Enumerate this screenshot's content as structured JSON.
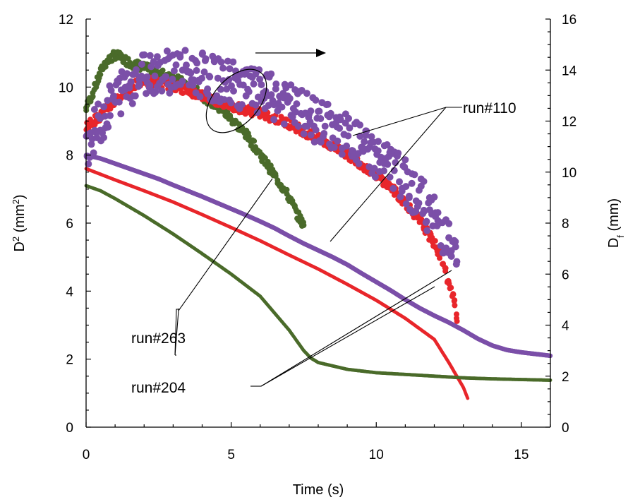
{
  "chart_data": {
    "type": "scatter",
    "xlabel": "Time (s)",
    "ylabel": "D² (mm²)",
    "ylabel_parts": {
      "base": "D",
      "sup": "2",
      "unit_open": " (mm",
      "unit_sup": "2",
      "unit_close": ")"
    },
    "y2label": "Df (mm)",
    "y2label_parts": {
      "base": "D",
      "sub": "f",
      "unit": " (mm)"
    },
    "xlim": [
      0,
      16
    ],
    "ylim": [
      0,
      12
    ],
    "y2lim": [
      0,
      16
    ],
    "x_ticks": [
      0,
      5,
      10,
      15
    ],
    "y_ticks": [
      0,
      2,
      4,
      6,
      8,
      10,
      12
    ],
    "y2_ticks": [
      0,
      2,
      4,
      6,
      8,
      10,
      12,
      14,
      16
    ],
    "grid": false,
    "annotations": {
      "run110": "run#110",
      "run263": "run#263",
      "run204": "run#204"
    },
    "series": [
      {
        "label": "run#110 D²",
        "axis": "left",
        "color": "#7b4fa8",
        "x": [
          0,
          0.5,
          1,
          1.5,
          2,
          2.5,
          3,
          3.5,
          4,
          4.5,
          5,
          5.5,
          6,
          6.5,
          7,
          7.5,
          8,
          8.5,
          9,
          9.5,
          10,
          10.5,
          11,
          11.5,
          12,
          12.5,
          13,
          13.5,
          14,
          14.5,
          15,
          15.5,
          16
        ],
        "y": [
          8.0,
          7.9,
          7.75,
          7.6,
          7.45,
          7.3,
          7.12,
          6.95,
          6.78,
          6.6,
          6.42,
          6.24,
          6.05,
          5.85,
          5.62,
          5.4,
          5.2,
          5.0,
          4.78,
          4.52,
          4.27,
          4.02,
          3.75,
          3.5,
          3.28,
          3.08,
          2.85,
          2.6,
          2.4,
          2.27,
          2.2,
          2.15,
          2.1
        ]
      },
      {
        "label": "run#204 D²",
        "axis": "left",
        "color": "#e8262b",
        "x": [
          0,
          1,
          2,
          3,
          4,
          5,
          6,
          7,
          8,
          9,
          10,
          11,
          12,
          12.5,
          13.0,
          13.15
        ],
        "y": [
          7.6,
          7.27,
          6.95,
          6.62,
          6.25,
          5.87,
          5.48,
          5.06,
          4.65,
          4.2,
          3.73,
          3.2,
          2.58,
          1.9,
          1.17,
          0.85
        ]
      },
      {
        "label": "run#263 D²",
        "axis": "left",
        "color": "#4a6b2a",
        "x": [
          0,
          0.5,
          1,
          2,
          3,
          4,
          5,
          6,
          7,
          7.5,
          7.75,
          8,
          9,
          10,
          11,
          12,
          13,
          14,
          15,
          16
        ],
        "y": [
          7.1,
          6.95,
          6.72,
          6.22,
          5.68,
          5.1,
          4.5,
          3.85,
          2.85,
          2.25,
          2.03,
          1.9,
          1.7,
          1.6,
          1.55,
          1.5,
          1.45,
          1.42,
          1.4,
          1.38
        ]
      },
      {
        "label": "run#110 Df",
        "axis": "right",
        "color": "#7b4fa8",
        "style": "scatter-noisy",
        "x": [
          0,
          0.5,
          1,
          1.5,
          2,
          2.5,
          3,
          3.5,
          4,
          4.5,
          5,
          5.5,
          6,
          6.5,
          7,
          7.5,
          8,
          8.5,
          9,
          9.5,
          10,
          10.5,
          11,
          11.5,
          12,
          12.5,
          12.8
        ],
        "y": [
          11.0,
          12.0,
          12.9,
          13.5,
          13.9,
          14.0,
          14.0,
          13.9,
          13.8,
          13.6,
          13.5,
          13.3,
          13.1,
          12.9,
          12.6,
          12.3,
          12.0,
          11.7,
          11.4,
          11.0,
          10.6,
          10.2,
          9.6,
          9.0,
          8.2,
          7.3,
          6.3
        ]
      },
      {
        "label": "run#204 Df",
        "axis": "right",
        "color": "#e8262b",
        "style": "scatter",
        "x": [
          0,
          0.5,
          1,
          1.5,
          2,
          2.5,
          3,
          3.5,
          4,
          4.5,
          5,
          5.5,
          6,
          6.5,
          7,
          7.5,
          8,
          8.5,
          9,
          9.5,
          10,
          10.5,
          11,
          11.5,
          12,
          12.3,
          12.5,
          12.7,
          12.8
        ],
        "y": [
          11.8,
          12.2,
          12.8,
          13.3,
          13.6,
          13.5,
          13.4,
          13.2,
          13.0,
          12.8,
          12.6,
          12.45,
          12.3,
          12.1,
          11.9,
          11.6,
          11.3,
          11.0,
          10.7,
          10.3,
          9.9,
          9.4,
          8.8,
          8.1,
          7.2,
          6.5,
          5.6,
          4.9,
          4.2
        ]
      },
      {
        "label": "run#263 Df",
        "axis": "right",
        "color": "#4a6b2a",
        "style": "scatter",
        "x": [
          0,
          0.3,
          0.6,
          1.0,
          1.5,
          2,
          2.5,
          3,
          3.5,
          4,
          4.5,
          5,
          5.5,
          6,
          6.3,
          6.6,
          7.0,
          7.3,
          7.5
        ],
        "y": [
          12.5,
          13.3,
          14.2,
          14.6,
          14.3,
          14.1,
          13.9,
          13.7,
          13.4,
          13.0,
          12.6,
          12.1,
          11.5,
          10.7,
          10.2,
          9.7,
          9.0,
          8.3,
          7.9
        ]
      }
    ]
  }
}
